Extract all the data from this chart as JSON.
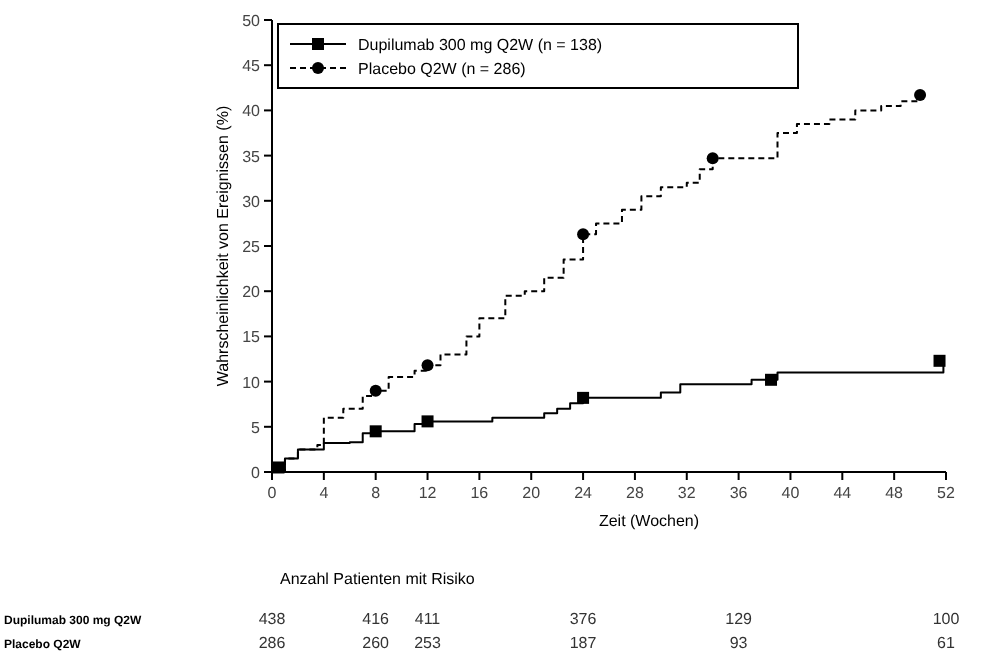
{
  "chart_data": {
    "type": "step",
    "xlabel": "Zeit (Wochen)",
    "ylabel": "Wahrscheinlichkeit von Ereignissen (%)",
    "xlim": [
      0,
      52
    ],
    "xticks": [
      0,
      4,
      8,
      12,
      16,
      20,
      24,
      28,
      32,
      36,
      40,
      44,
      48,
      52
    ],
    "ylim": [
      0,
      50
    ],
    "yticks": [
      0,
      5,
      10,
      15,
      20,
      25,
      30,
      35,
      40,
      45,
      50
    ],
    "legend": "top left",
    "grid": false,
    "series": [
      {
        "name": "Dupilumab 300 mg Q2W (n = 138)",
        "color": "#000000",
        "line_style": "solid",
        "x": [
          0,
          1,
          2,
          4,
          6,
          7,
          8,
          11,
          12,
          17,
          21,
          22,
          23,
          24,
          30,
          31.5,
          37,
          39,
          51.8
        ],
        "values": [
          0,
          1.5,
          2.5,
          3.2,
          3.3,
          4.3,
          4.5,
          5.3,
          5.6,
          6,
          6.5,
          7,
          7.6,
          8.2,
          8.8,
          9.7,
          10.2,
          11,
          12.3
        ]
      },
      {
        "name": "Placebo Q2W (n = 286)",
        "color": "#000000",
        "line_style": "dashed",
        "x": [
          0,
          1,
          2,
          3.5,
          4,
          5.5,
          7,
          8,
          9,
          11,
          12,
          13,
          15,
          16,
          18,
          19.5,
          21,
          22.5,
          24,
          25,
          27,
          28.5,
          30,
          32,
          33,
          34,
          39,
          40.5,
          43,
          45,
          47,
          48.5,
          50
        ],
        "values": [
          0,
          1.5,
          2.5,
          3,
          6,
          7,
          8.4,
          9,
          10.5,
          11.2,
          11.8,
          13,
          15,
          17,
          19.5,
          20,
          21.5,
          23.5,
          26.3,
          27.5,
          29,
          30.5,
          31.5,
          32,
          33.5,
          34.7,
          37.5,
          38.5,
          39,
          40,
          40.5,
          41,
          41.7
        ]
      },
      {
        "type": "scatter",
        "color": "#000000",
        "marker": "square",
        "x": [
          0.5,
          8,
          12,
          24,
          38.5,
          51.5
        ],
        "values": [
          0.5,
          4.5,
          5.6,
          8.2,
          10.2,
          12.3
        ]
      },
      {
        "type": "scatter",
        "color": "#000000",
        "marker": "circle",
        "x": [
          8,
          12,
          24,
          34,
          50
        ],
        "values": [
          9,
          11.8,
          26.3,
          34.7,
          41.7
        ]
      }
    ],
    "annotations": [
      "Anzahl Patienten mit Risiko",
      "Dupilumab 300 mg Q2W",
      "Placebo Q2W",
      "438",
      "416",
      "411",
      "376",
      "129",
      "100",
      "286",
      "260",
      "253",
      "187",
      "93",
      "61"
    ]
  }
}
